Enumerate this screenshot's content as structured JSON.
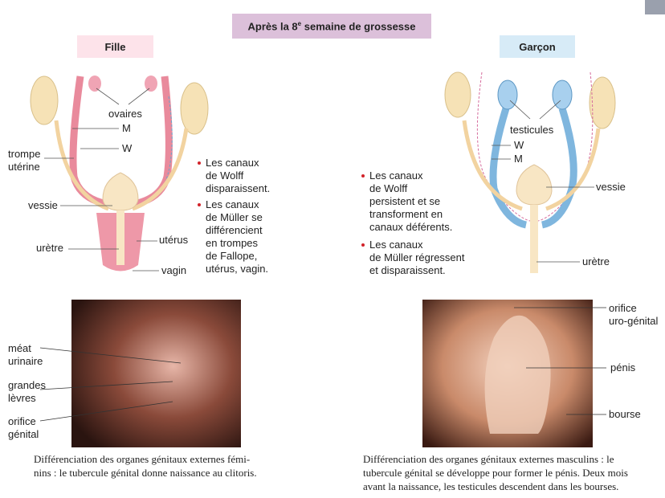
{
  "header": {
    "title_before": "Après la 8",
    "title_sup": "e",
    "title_after": " semaine de grossesse"
  },
  "left": {
    "heading": "Fille",
    "labels": {
      "ovaires": [
        "ovaires"
      ],
      "m": [
        "M"
      ],
      "w": [
        "W"
      ],
      "trompe": [
        "trompe",
        "utérine"
      ],
      "vessie": [
        "vessie"
      ],
      "uretre": [
        "urètre"
      ],
      "uterus": [
        "utérus"
      ],
      "vagin": [
        "vagin"
      ]
    },
    "bullets": [
      [
        "Les canaux",
        "de Wolff",
        "disparaissent."
      ],
      [
        "Les canaux",
        "de Müller se",
        "différencient",
        "en trompes",
        "de Fallope,",
        "utérus, vagin."
      ]
    ],
    "photo_labels": {
      "meat": [
        "méat",
        "urinaire"
      ],
      "levres": [
        "grandes",
        "lèvres"
      ],
      "orifice": [
        "orifice",
        "génital"
      ]
    },
    "caption": [
      "Différenciation des organes génitaux externes fémi-",
      "nins : le tubercule génital donne naissance au clitoris."
    ]
  },
  "right": {
    "heading": "Garçon",
    "labels": {
      "testicules": [
        "testicules"
      ],
      "w": [
        "W"
      ],
      "m": [
        "M"
      ],
      "vessie": [
        "vessie"
      ],
      "uretre": [
        "urètre"
      ]
    },
    "bullets": [
      [
        "Les canaux",
        "de Wolff",
        "persistent et se",
        "transforment en",
        "canaux déférents."
      ],
      [
        "Les canaux",
        "de Müller régressent",
        "et disparaissent."
      ]
    ],
    "photo_labels": {
      "orifice": [
        "orifice",
        "uro-génital"
      ],
      "penis": [
        "pénis"
      ],
      "bourse": [
        "bourse"
      ]
    },
    "caption": [
      "Différenciation des organes génitaux externes masculins : le",
      "tubercule génital se développe pour former le pénis. Deux mois",
      "avant la naissance, les testicules descendent dans les bourses."
    ]
  }
}
